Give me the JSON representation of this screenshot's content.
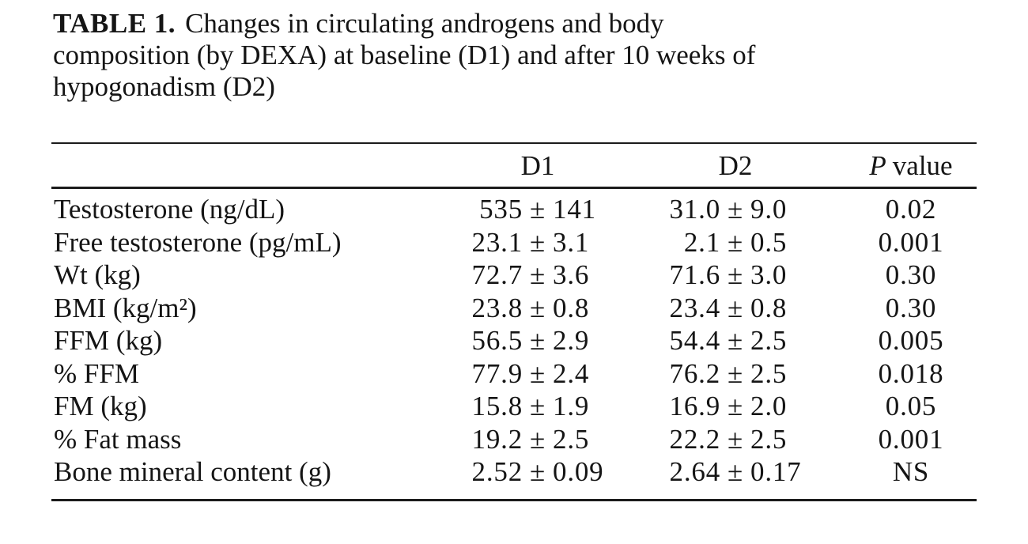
{
  "caption": {
    "label": "TABLE 1.",
    "line1": "Changes in circulating androgens and body",
    "line2": "composition (by DEXA) at baseline (D1) and after 10 weeks of",
    "line3": "hypogonadism (D2)"
  },
  "table": {
    "pm": "±",
    "header": {
      "d1": "D1",
      "d2": "D2",
      "p_italic": "P",
      "p_rest": "value"
    },
    "rows": [
      {
        "label": "Testosterone (ng/dL)",
        "d1": {
          "v": "535",
          "e": "141"
        },
        "d2": {
          "v": "31.0",
          "e": "9.0"
        },
        "p": "0.02"
      },
      {
        "label": "Free testosterone (pg/mL)",
        "d1": {
          "v": "23.1",
          "e": "3.1"
        },
        "d2": {
          "v": "2.1",
          "e": "0.5"
        },
        "p": "0.001"
      },
      {
        "label": "Wt (kg)",
        "d1": {
          "v": "72.7",
          "e": "3.6"
        },
        "d2": {
          "v": "71.6",
          "e": "3.0"
        },
        "p": "0.30"
      },
      {
        "label": "BMI (kg/m²)",
        "d1": {
          "v": "23.8",
          "e": "0.8"
        },
        "d2": {
          "v": "23.4",
          "e": "0.8"
        },
        "p": "0.30"
      },
      {
        "label": "FFM (kg)",
        "d1": {
          "v": "56.5",
          "e": "2.9"
        },
        "d2": {
          "v": "54.4",
          "e": "2.5"
        },
        "p": "0.005"
      },
      {
        "label": "% FFM",
        "d1": {
          "v": "77.9",
          "e": "2.4"
        },
        "d2": {
          "v": "76.2",
          "e": "2.5"
        },
        "p": "0.018"
      },
      {
        "label": "FM (kg)",
        "d1": {
          "v": "15.8",
          "e": "1.9"
        },
        "d2": {
          "v": "16.9",
          "e": "2.0"
        },
        "p": "0.05"
      },
      {
        "label": "% Fat mass",
        "d1": {
          "v": "19.2",
          "e": "2.5"
        },
        "d2": {
          "v": "22.2",
          "e": "2.5"
        },
        "p": "0.001"
      },
      {
        "label": "Bone mineral content (g)",
        "d1": {
          "v": "2.52",
          "e": "0.09"
        },
        "d2": {
          "v": "2.64",
          "e": "0.17"
        },
        "p": "NS"
      }
    ]
  },
  "colors": {
    "background": "#ffffff",
    "text": "#151515",
    "rule": "#1b1b1b"
  }
}
